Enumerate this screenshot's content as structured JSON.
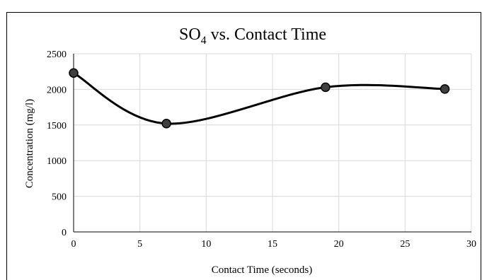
{
  "chart_data": {
    "type": "scatter",
    "title_main": "SO",
    "title_sub": "4",
    "title_rest": " vs. Contact Time",
    "xlabel": "Contact Time (seconds)",
    "ylabel": "Concentration (mg/l)",
    "xlim": [
      0,
      30
    ],
    "ylim": [
      0,
      2500
    ],
    "xticks": [
      0,
      5,
      10,
      15,
      20,
      25,
      30
    ],
    "yticks": [
      0,
      500,
      1000,
      1500,
      2000,
      2500
    ],
    "grid": true,
    "smoothed_line": true,
    "series": [
      {
        "x": [
          0,
          7,
          19,
          28
        ],
        "y": [
          2230,
          1520,
          2030,
          2005
        ]
      }
    ],
    "colors": {
      "line": "#000000",
      "marker_fill": "#3f3f3f",
      "marker_stroke": "#000000",
      "grid": "#d9d9d9",
      "axis": "#000000"
    }
  }
}
